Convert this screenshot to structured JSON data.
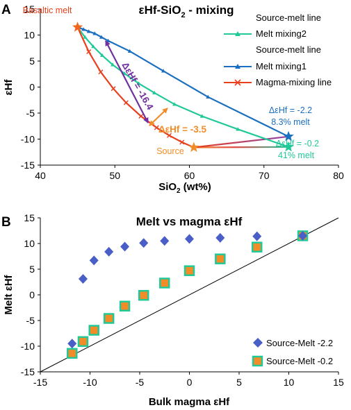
{
  "chart_data": [
    {
      "type": "line",
      "panel": "A",
      "title": "εHf-SiO2 - mixing",
      "title_main": "εHf-SiO",
      "title_sub": "2",
      "title_suffix": " - mixing",
      "xlabel": "SiO2 (wt%)",
      "xlabel_main": "SiO",
      "xlabel_sub": "2",
      "xlabel_suffix": " (wt%)",
      "ylabel": "εHf",
      "xlim": [
        40,
        80
      ],
      "ylim": [
        -15,
        15
      ],
      "xticks": [
        "40",
        "50",
        "60",
        "70",
        "80"
      ],
      "yticks": [
        "15",
        "10",
        "5",
        "0",
        "-5",
        "-10",
        "-15"
      ],
      "grid": false,
      "legend_position": "right",
      "series": [
        {
          "name": "Source-melt line",
          "color": "gradient-orange-red-green",
          "x": [
            60.6,
            73.3
          ],
          "y": [
            -11.6,
            -11.5
          ]
        },
        {
          "name": "Melt mixing2",
          "color": "#20c997",
          "x": [
            45,
            46,
            47.1,
            48.3,
            49.7,
            51.3,
            53.2,
            55.3,
            58,
            61.7,
            66.5,
            73.3
          ],
          "y": [
            11.5,
            9.6,
            7.8,
            6.1,
            4.3,
            2.6,
            0.7,
            -1.1,
            -3.3,
            -5.6,
            -8.1,
            -11.5
          ]
        },
        {
          "name": "Source-melt line",
          "color": "gradient-red-purple",
          "x": [
            60.6,
            73.3
          ],
          "y": [
            -11.6,
            -9.5
          ]
        },
        {
          "name": "Melt mixing1",
          "color": "#1b6fc1",
          "x": [
            45,
            45.8,
            46.5,
            47.3,
            48.2,
            49.1,
            52,
            56.5,
            62.5,
            73.3
          ],
          "y": [
            11.5,
            11.1,
            10.7,
            10.3,
            9.6,
            8.9,
            6.9,
            3.1,
            -1.9,
            -9.5
          ]
        },
        {
          "name": "Magma-mixing line",
          "color": "#e8401c",
          "x": [
            45,
            46.5,
            48.1,
            49.8,
            51.5,
            53.5,
            55.6,
            57.3,
            59,
            60.6
          ],
          "y": [
            11.5,
            6.8,
            2.9,
            -0.3,
            -3,
            -5.6,
            -7.8,
            -9.3,
            -10.6,
            -11.6
          ]
        }
      ],
      "annotations": [
        {
          "text": "Basaltic melt",
          "color": "#e8401c"
        },
        {
          "text": "Source",
          "color": "#f28c28"
        },
        {
          "text": "ΔεHf = -16.4",
          "color": "#7030a0"
        },
        {
          "text": "ΔεHf = -3.5",
          "color": "#f28c28"
        },
        {
          "text": "ΔεHf = -2.2",
          "color": "#1b6fc1"
        },
        {
          "text": "8.3% melt",
          "color": "#1b6fc1"
        },
        {
          "text": "ΔεHf = -0.2",
          "color": "#20c997"
        },
        {
          "text": "41% melt",
          "color": "#20c997"
        }
      ]
    },
    {
      "type": "scatter",
      "panel": "B",
      "title": "Melt vs magma εHf",
      "xlabel": "Bulk magma εHf",
      "ylabel": "Melt εHf",
      "xlim": [
        -15,
        15
      ],
      "ylim": [
        -15,
        15
      ],
      "xticks": [
        "-15",
        "-10",
        "-5",
        "0",
        "5",
        "10",
        "15"
      ],
      "yticks": [
        "15",
        "10",
        "5",
        "0",
        "-5",
        "-10",
        "-15"
      ],
      "grid": false,
      "legend_position": "bottom-right",
      "reference_line": "1:1",
      "series": [
        {
          "name": "Source-Melt -2.2",
          "marker": "diamond",
          "color": "#4a5ec8",
          "x": [
            -11.8,
            -10.7,
            -9.6,
            -8.1,
            -6.5,
            -4.6,
            -2.5,
            0,
            3.1,
            6.8,
            11.4
          ],
          "y": [
            -9.5,
            3.1,
            6.7,
            8.4,
            9.4,
            10.1,
            10.5,
            10.9,
            11.1,
            11.4,
            11.5
          ]
        },
        {
          "name": "Source-Melt -0.2",
          "marker": "square",
          "color": "#f28c28",
          "edge": "#20c997",
          "x": [
            -11.8,
            -10.7,
            -9.6,
            -8.1,
            -6.5,
            -4.6,
            -2.5,
            0,
            3.1,
            6.8,
            11.4
          ],
          "y": [
            -11.4,
            -9.1,
            -6.9,
            -4.6,
            -2.2,
            -0.1,
            2.3,
            4.7,
            7,
            9.3,
            11.5
          ]
        }
      ]
    }
  ]
}
